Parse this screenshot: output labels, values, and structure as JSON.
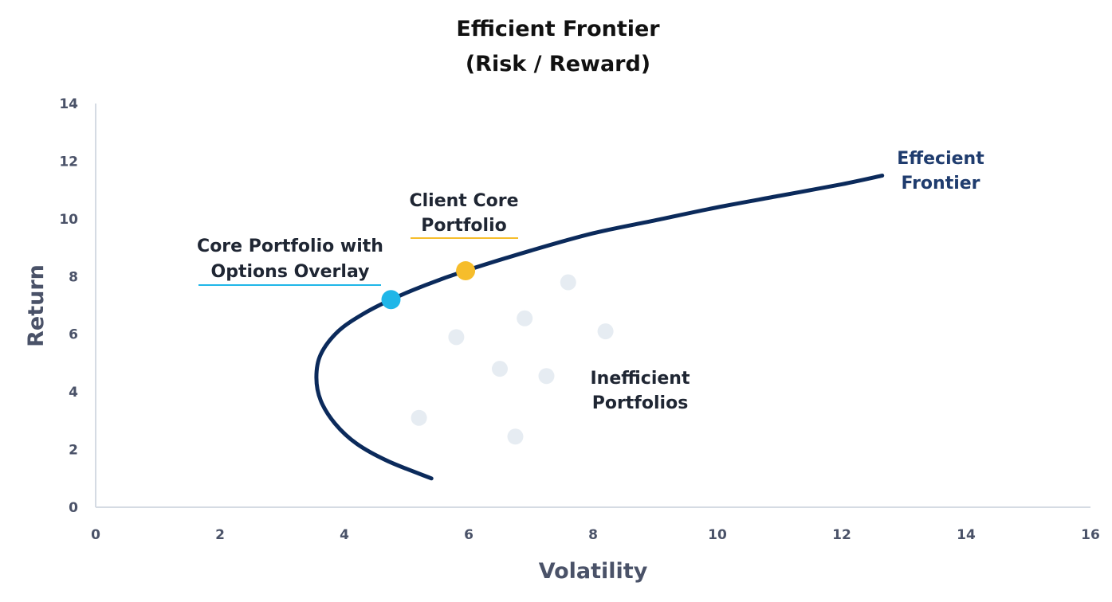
{
  "chart_data": {
    "type": "scatter",
    "title": [
      "Efficient Frontier",
      "(Risk / Reward)"
    ],
    "xlabel": "Volatility",
    "ylabel": "Return",
    "xlim": [
      0,
      16
    ],
    "ylim": [
      0,
      14
    ],
    "x_ticks": [
      "0",
      "2",
      "4",
      "6",
      "8",
      "10",
      "12",
      "14",
      "16"
    ],
    "y_ticks": [
      "0",
      "2",
      "4",
      "6",
      "8",
      "10",
      "12",
      "14"
    ],
    "grid": false,
    "frontier": {
      "label": [
        "Effecient",
        "Frontier"
      ],
      "color": "#0b2a5b",
      "points": [
        {
          "x": 5.4,
          "y": 1.0
        },
        {
          "x": 4.7,
          "y": 1.6
        },
        {
          "x": 4.2,
          "y": 2.2
        },
        {
          "x": 3.85,
          "y": 2.9
        },
        {
          "x": 3.62,
          "y": 3.7
        },
        {
          "x": 3.55,
          "y": 4.5
        },
        {
          "x": 3.62,
          "y": 5.3
        },
        {
          "x": 3.9,
          "y": 6.1
        },
        {
          "x": 4.3,
          "y": 6.7
        },
        {
          "x": 4.75,
          "y": 7.2
        },
        {
          "x": 5.3,
          "y": 7.7
        },
        {
          "x": 5.95,
          "y": 8.2
        },
        {
          "x": 7.0,
          "y": 8.9
        },
        {
          "x": 8.0,
          "y": 9.5
        },
        {
          "x": 9.0,
          "y": 9.95
        },
        {
          "x": 10.0,
          "y": 10.4
        },
        {
          "x": 11.0,
          "y": 10.8
        },
        {
          "x": 12.0,
          "y": 11.2
        },
        {
          "x": 12.65,
          "y": 11.5
        }
      ]
    },
    "highlighted": [
      {
        "name": "Core Portfolio with Options Overlay",
        "lines": [
          "Core Portfolio with",
          "Options Overlay"
        ],
        "x": 4.75,
        "y": 7.2,
        "color": "#1fb6e8"
      },
      {
        "name": "Client Core Portfolio",
        "lines": [
          "Client Core",
          "Portfolio"
        ],
        "x": 5.95,
        "y": 8.2,
        "color": "#f6bd2b"
      }
    ],
    "inefficient": {
      "label": [
        "Inefficient",
        "Portfolios"
      ],
      "color": "#e6ecf2",
      "points": [
        {
          "x": 7.6,
          "y": 7.8
        },
        {
          "x": 6.9,
          "y": 6.55
        },
        {
          "x": 8.2,
          "y": 6.1
        },
        {
          "x": 5.8,
          "y": 5.9
        },
        {
          "x": 6.5,
          "y": 4.8
        },
        {
          "x": 7.25,
          "y": 4.55
        },
        {
          "x": 5.2,
          "y": 3.1
        },
        {
          "x": 6.75,
          "y": 2.45
        }
      ]
    }
  }
}
